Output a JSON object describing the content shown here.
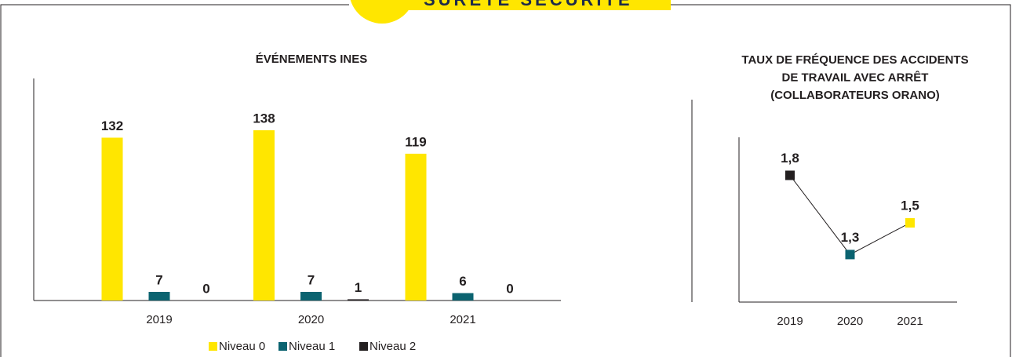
{
  "header": {
    "title": "SÛRETÉ SÉCURITÉ"
  },
  "chart_data": [
    {
      "type": "bar",
      "title": "ÉVÉNEMENTS INES",
      "categories": [
        "2019",
        "2020",
        "2021"
      ],
      "series": [
        {
          "name": "Niveau 0",
          "color": "#ffe600",
          "values": [
            132,
            138,
            119
          ]
        },
        {
          "name": "Niveau 1",
          "color": "#0b6370",
          "values": [
            7,
            7,
            6
          ]
        },
        {
          "name": "Niveau 2",
          "color": "#231f20",
          "values": [
            0,
            1,
            0
          ]
        }
      ],
      "ylim": [
        0,
        180
      ],
      "legend": "bottom"
    },
    {
      "type": "line",
      "title": [
        "TAUX DE FRÉQUENCE DES ACCIDENTS",
        "DE TRAVAIL AVEC ARRÊT",
        "(COLLABORATEURS ORANO)"
      ],
      "categories": [
        "2019",
        "2020",
        "2021"
      ],
      "values": [
        1.8,
        1.3,
        1.5
      ],
      "value_labels": [
        "1,8",
        "1,3",
        "1,5"
      ],
      "point_colors": [
        "#231f20",
        "#0b6370",
        "#ffe600"
      ],
      "line_color": "#231f20",
      "ylim": [
        1,
        2.04
      ]
    }
  ]
}
